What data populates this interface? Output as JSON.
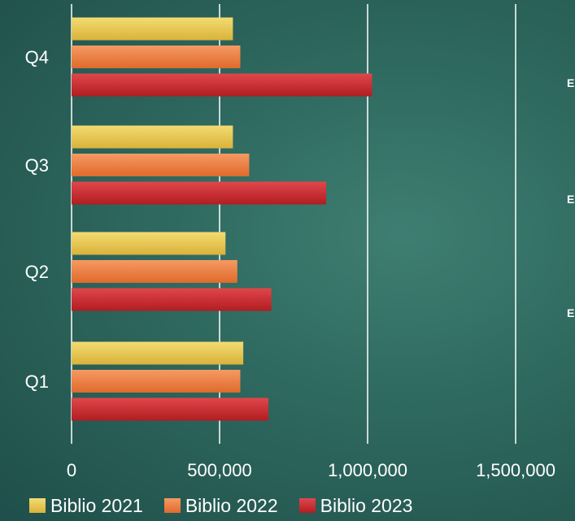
{
  "chart_data": {
    "type": "bar",
    "orientation": "horizontal",
    "categories": [
      "Q1",
      "Q2",
      "Q3",
      "Q4"
    ],
    "series": [
      {
        "name": "Biblio 2021",
        "values": [
          580000,
          520000,
          545000,
          545000
        ],
        "color": "#e8c64a"
      },
      {
        "name": "Biblio 2022",
        "values": [
          570000,
          560000,
          600000,
          570000
        ],
        "color": "#ee7f3f"
      },
      {
        "name": "Biblio 2023",
        "values": [
          665000,
          675000,
          860000,
          1015000
        ],
        "color": "#c8252a"
      }
    ],
    "xlim": [
      0,
      1500000
    ],
    "x_ticks": [
      {
        "value": 0,
        "label": "0"
      },
      {
        "value": 500000,
        "label": "500,000"
      },
      {
        "value": 1000000,
        "label": "1,000,000"
      },
      {
        "value": 1500000,
        "label": "1,500,000"
      }
    ],
    "grid": "vertical",
    "legend_position": "bottom",
    "title": "",
    "xlabel": "",
    "ylabel": ""
  },
  "edge_marks": [
    "E",
    "E",
    "E"
  ]
}
